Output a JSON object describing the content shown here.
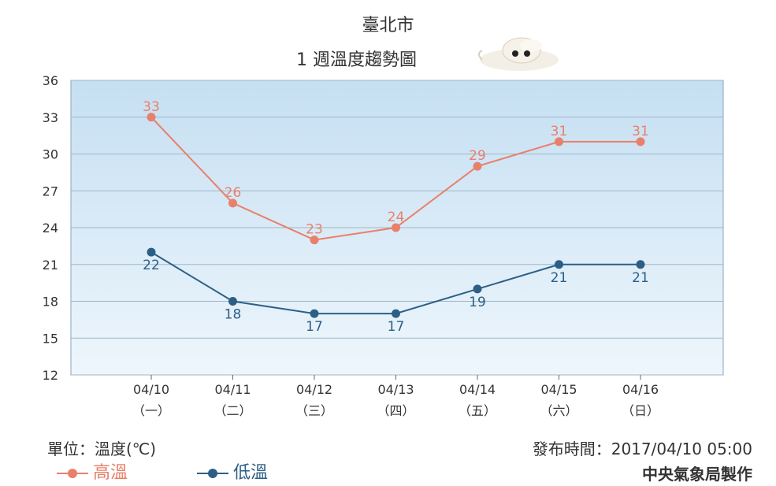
{
  "chart_data": {
    "type": "line",
    "title": "臺北市",
    "subtitle": "1 週溫度趨勢圖",
    "categories": [
      "04/10",
      "04/11",
      "04/12",
      "04/13",
      "04/14",
      "04/15",
      "04/16"
    ],
    "category_sublabels": [
      "（一）",
      "（二）",
      "（三）",
      "（四）",
      "（五）",
      "（六）",
      "（日）"
    ],
    "series": [
      {
        "name": "高溫",
        "values": [
          33,
          26,
          23,
          24,
          29,
          31,
          31
        ],
        "color": "#e8806a"
      },
      {
        "name": "低溫",
        "values": [
          22,
          18,
          17,
          17,
          19,
          21,
          21
        ],
        "color": "#2c5f86"
      }
    ],
    "yticks": [
      12,
      15,
      18,
      21,
      24,
      27,
      30,
      33,
      36
    ],
    "ylim": [
      12,
      36
    ],
    "grid": true,
    "legend_position": "bottom-left"
  },
  "footer": {
    "unit": "單位：溫度(℃)",
    "issued": "發布時間：2017/04/10 05:00",
    "agency": "中央氣象局製作"
  },
  "colors": {
    "plot_bg_top": "#c5dff2",
    "plot_bg_bottom": "#eef6fc",
    "grid": "#9fb6c9"
  }
}
